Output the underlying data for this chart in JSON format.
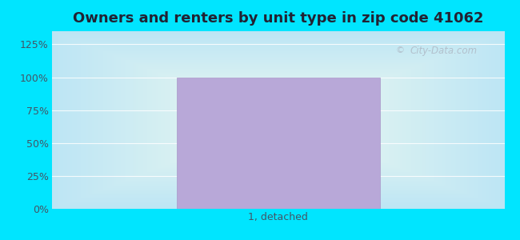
{
  "title": "Owners and renters by unit type in zip code 41062",
  "categories": [
    "1, detached"
  ],
  "values": [
    100
  ],
  "bar_color": "#b8a8d8",
  "bar_edge_color": "#a898c8",
  "yticks": [
    0,
    25,
    50,
    75,
    100,
    125
  ],
  "ytick_labels": [
    "0%",
    "25%",
    "50%",
    "75%",
    "100%",
    "125%"
  ],
  "ylim": [
    0,
    135
  ],
  "title_fontsize": 13,
  "title_color": "#222233",
  "tick_label_color": "#445566",
  "bg_outer_color": "#00e5ff",
  "watermark_text": "City-Data.com",
  "watermark_color": "#b0bcc8",
  "bar_width": 0.45,
  "figsize": [
    6.5,
    3.0
  ],
  "dpi": 100
}
